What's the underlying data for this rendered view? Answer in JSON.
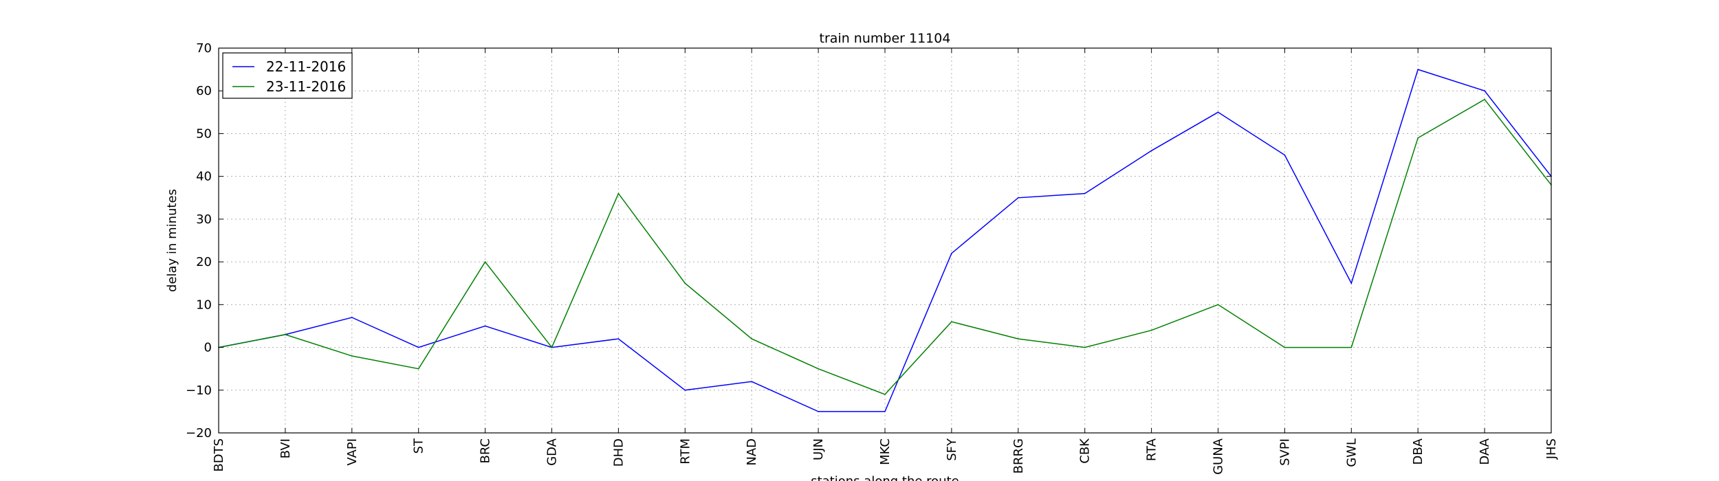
{
  "chart_data": {
    "type": "line",
    "title": "train number 11104",
    "xlabel": "stations along the route",
    "ylabel": "delay in minutes",
    "categories": [
      "BDTS",
      "BVI",
      "VAPI",
      "ST",
      "BRC",
      "GDA",
      "DHD",
      "RTM",
      "NAD",
      "UJN",
      "MKC",
      "SFY",
      "BRRG",
      "CBK",
      "RTA",
      "GUNA",
      "SVPI",
      "GWL",
      "DBA",
      "DAA",
      "JHS"
    ],
    "ylim": [
      -20,
      70
    ],
    "yticks": [
      "−20",
      "−10",
      "0",
      "10",
      "20",
      "30",
      "40",
      "50",
      "60",
      "70"
    ],
    "ytick_values": [
      -20,
      -10,
      0,
      10,
      20,
      30,
      40,
      50,
      60,
      70
    ],
    "grid": true,
    "legend_position": "top-left",
    "series": [
      {
        "name": "22-11-2016",
        "color": "#0000ff",
        "values": [
          0,
          3,
          7,
          0,
          5,
          0,
          2,
          -10,
          -8,
          -15,
          -15,
          22,
          35,
          36,
          46,
          55,
          45,
          15,
          65,
          60,
          40
        ]
      },
      {
        "name": "23-11-2016",
        "color": "#008000",
        "values": [
          0,
          3,
          -2,
          -5,
          20,
          0,
          36,
          15,
          2,
          -5,
          -11,
          6,
          2,
          0,
          4,
          10,
          0,
          0,
          49,
          58,
          38
        ]
      }
    ]
  }
}
